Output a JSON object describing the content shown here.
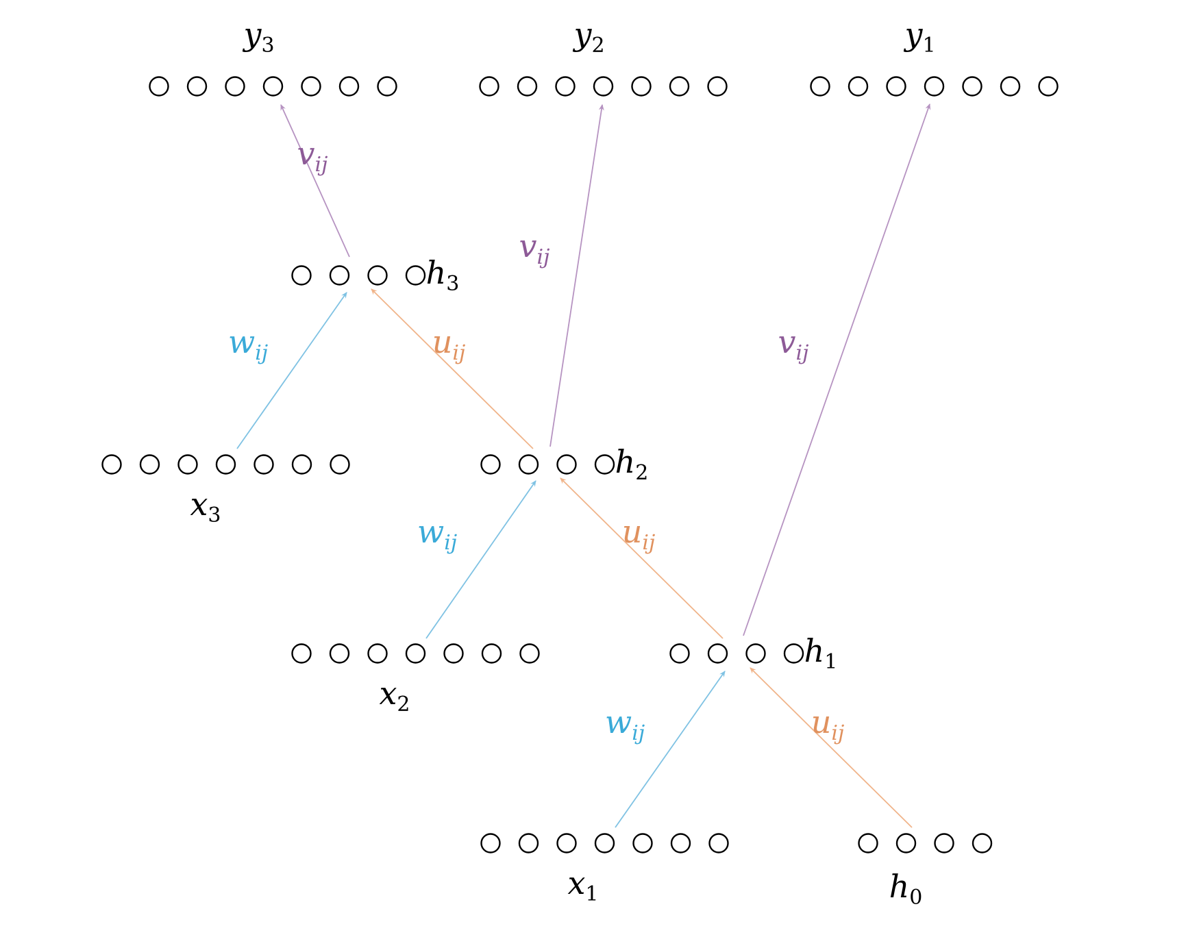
{
  "colors": {
    "w_edge": "#7fc2e3",
    "u_edge": "#f0b48a",
    "v_edge": "#b693c1",
    "w_text": "#3aaad8",
    "u_text": "#e0915e",
    "v_text": "#8d5a97",
    "node_stroke": "#000000"
  },
  "layers": [
    {
      "id": "y3",
      "base": "y",
      "sub": "3",
      "nodes": 7
    },
    {
      "id": "y2",
      "base": "y",
      "sub": "2",
      "nodes": 7
    },
    {
      "id": "y1",
      "base": "y",
      "sub": "1",
      "nodes": 7
    },
    {
      "id": "h3",
      "base": "h",
      "sub": "3",
      "nodes": 4
    },
    {
      "id": "h2",
      "base": "h",
      "sub": "2",
      "nodes": 4
    },
    {
      "id": "h1",
      "base": "h",
      "sub": "1",
      "nodes": 4
    },
    {
      "id": "h0",
      "base": "h",
      "sub": "0",
      "nodes": 4
    },
    {
      "id": "x3",
      "base": "x",
      "sub": "3",
      "nodes": 7
    },
    {
      "id": "x2",
      "base": "x",
      "sub": "2",
      "nodes": 7
    },
    {
      "id": "x1",
      "base": "x",
      "sub": "1",
      "nodes": 7
    }
  ],
  "edges": [
    {
      "from": "x1",
      "to": "h1",
      "type": "w",
      "base": "w",
      "sub": "ij"
    },
    {
      "from": "h0",
      "to": "h1",
      "type": "u",
      "base": "u",
      "sub": "ij"
    },
    {
      "from": "h1",
      "to": "y1",
      "type": "v",
      "base": "v",
      "sub": "ij"
    },
    {
      "from": "x2",
      "to": "h2",
      "type": "w",
      "base": "w",
      "sub": "ij"
    },
    {
      "from": "h1",
      "to": "h2",
      "type": "u",
      "base": "u",
      "sub": "ij"
    },
    {
      "from": "h2",
      "to": "y2",
      "type": "v",
      "base": "v",
      "sub": "ij"
    },
    {
      "from": "x3",
      "to": "h3",
      "type": "w",
      "base": "w",
      "sub": "ij"
    },
    {
      "from": "h2",
      "to": "h3",
      "type": "u",
      "base": "u",
      "sub": "ij"
    },
    {
      "from": "h3",
      "to": "y3",
      "type": "v",
      "base": "v",
      "sub": "ij"
    }
  ]
}
